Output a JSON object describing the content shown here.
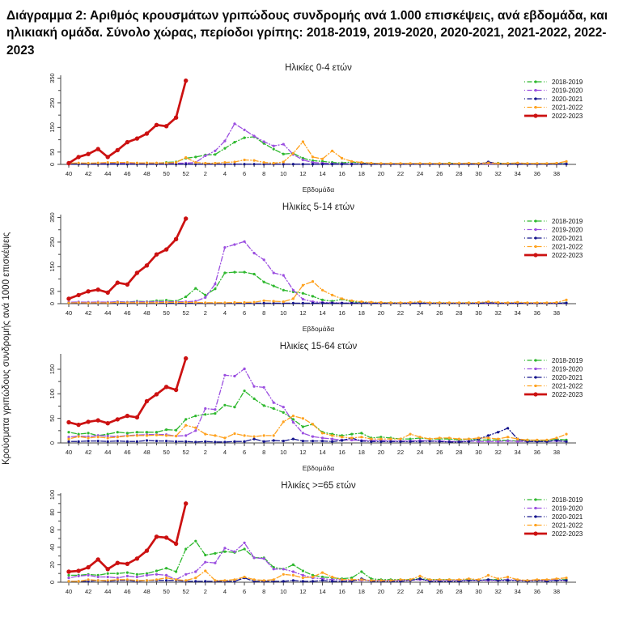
{
  "heading": "Διάγραμμα 2: Αριθμός κρουσμάτων γριπώδους συνδρομής ανά 1.000 επισκέψεις, ανά εβδομάδα, και ηλικιακή ομάδα. Σύνολο χώρας, περίοδοι γρίπης: 2018-2019, 2019-2020, 2020-2021, 2021-2022, 2022-2023",
  "ylabel": "Κρούσματα γριπώδους συνδρομής ανά 1000 επισκέψεις",
  "xlabel": "Εβδομάδα",
  "weeks": [
    40,
    41,
    42,
    43,
    44,
    45,
    46,
    47,
    48,
    49,
    50,
    51,
    52,
    1,
    2,
    3,
    4,
    5,
    6,
    7,
    8,
    9,
    10,
    11,
    12,
    13,
    14,
    15,
    16,
    17,
    18,
    19,
    20,
    21,
    22,
    23,
    24,
    25,
    26,
    27,
    28,
    29,
    30,
    31,
    32,
    33,
    34,
    35,
    36,
    37,
    38,
    39
  ],
  "x_tick_labels": [
    40,
    42,
    44,
    46,
    48,
    50,
    52,
    2,
    4,
    6,
    8,
    10,
    12,
    14,
    16,
    18,
    20,
    22,
    24,
    26,
    28,
    30,
    32,
    34,
    36,
    38
  ],
  "series_meta": [
    {
      "name": "2018-2019",
      "color": "#2eb82e",
      "style": "dashdot"
    },
    {
      "name": "2019-2020",
      "color": "#9b4fe0",
      "style": "dashdot"
    },
    {
      "name": "2020-2021",
      "color": "#14148c",
      "style": "dashdot"
    },
    {
      "name": "2021-2022",
      "color": "#ffa21f",
      "style": "dashdot"
    },
    {
      "name": "2022-2023",
      "color": "#cc1111",
      "style": "solid"
    }
  ],
  "chart_data": [
    {
      "type": "line",
      "key": "ages-0-4",
      "title": "Ηλικίες 0-4 ετών",
      "xlabel": "Εβδομάδα",
      "ylim": [
        0,
        355
      ],
      "yticks_labeled": [
        0,
        50,
        150,
        250,
        350
      ],
      "yticks_minor": [
        100,
        200,
        300
      ],
      "legend_position": "top-right",
      "grid": false,
      "has_xlabel": true,
      "series": [
        {
          "name": "2018-2019",
          "values": [
            3,
            4,
            3,
            5,
            4,
            6,
            5,
            5,
            6,
            5,
            8,
            10,
            25,
            30,
            38,
            40,
            65,
            90,
            108,
            112,
            85,
            62,
            42,
            45,
            25,
            15,
            12,
            8,
            6,
            10,
            5,
            4,
            3,
            3,
            3,
            3,
            3,
            3,
            3,
            5,
            3,
            3,
            4,
            3,
            5,
            4,
            3,
            3,
            3,
            3,
            3,
            4
          ]
        },
        {
          "name": "2019-2020",
          "values": [
            2,
            3,
            2,
            3,
            3,
            4,
            5,
            4,
            5,
            5,
            4,
            5,
            5,
            8,
            35,
            55,
            95,
            165,
            140,
            115,
            92,
            75,
            82,
            40,
            18,
            8,
            5,
            3,
            3,
            2,
            2,
            2,
            2,
            2,
            2,
            2,
            2,
            2,
            2,
            2,
            2,
            2,
            2,
            2,
            2,
            2,
            3,
            2,
            2,
            2,
            2,
            3
          ]
        },
        {
          "name": "2020-2021",
          "values": [
            1,
            1,
            1,
            1,
            1,
            1,
            1,
            1,
            1,
            1,
            1,
            1,
            1,
            1,
            1,
            1,
            1,
            1,
            1,
            1,
            1,
            1,
            1,
            1,
            1,
            1,
            1,
            1,
            1,
            1,
            2,
            1,
            1,
            1,
            1,
            1,
            1,
            1,
            1,
            1,
            1,
            1,
            1,
            10,
            3,
            1,
            1,
            1,
            1,
            1,
            2,
            1
          ]
        },
        {
          "name": "2021-2022",
          "values": [
            5,
            6,
            5,
            6,
            8,
            8,
            8,
            6,
            6,
            6,
            6,
            8,
            28,
            8,
            5,
            5,
            8,
            10,
            18,
            16,
            8,
            5,
            10,
            45,
            92,
            30,
            22,
            55,
            25,
            12,
            8,
            5,
            4,
            4,
            4,
            4,
            4,
            4,
            4,
            4,
            4,
            5,
            4,
            6,
            4,
            4,
            6,
            4,
            4,
            4,
            5,
            12
          ]
        },
        {
          "name": "2022-2023",
          "values": [
            5,
            30,
            42,
            62,
            30,
            58,
            90,
            105,
            125,
            160,
            155,
            190,
            340
          ]
        }
      ]
    },
    {
      "type": "line",
      "key": "ages-5-14",
      "title": "Ηλικίες 5-14 ετών",
      "xlabel": "Εβδομάδα",
      "ylim": [
        0,
        355
      ],
      "yticks_labeled": [
        0,
        50,
        150,
        250,
        350
      ],
      "yticks_minor": [
        100,
        200,
        300
      ],
      "legend_position": "top-right",
      "grid": false,
      "has_xlabel": true,
      "series": [
        {
          "name": "2018-2019",
          "values": [
            5,
            6,
            5,
            6,
            5,
            8,
            6,
            10,
            8,
            12,
            14,
            10,
            28,
            62,
            35,
            60,
            125,
            128,
            128,
            120,
            88,
            72,
            55,
            48,
            42,
            30,
            15,
            10,
            18,
            8,
            6,
            5,
            4,
            4,
            3,
            3,
            4,
            3,
            4,
            3,
            3,
            4,
            3,
            4,
            3,
            3,
            4,
            3,
            3,
            3,
            3,
            4
          ]
        },
        {
          "name": "2019-2020",
          "values": [
            6,
            7,
            6,
            7,
            6,
            8,
            6,
            8,
            7,
            8,
            8,
            8,
            8,
            10,
            25,
            80,
            228,
            240,
            252,
            205,
            178,
            125,
            115,
            55,
            18,
            8,
            5,
            4,
            3,
            3,
            3,
            3,
            2,
            2,
            2,
            2,
            2,
            2,
            2,
            2,
            2,
            2,
            2,
            2,
            2,
            2,
            3,
            2,
            2,
            2,
            2,
            3
          ]
        },
        {
          "name": "2020-2021",
          "values": [
            2,
            2,
            2,
            2,
            2,
            2,
            2,
            2,
            2,
            2,
            2,
            2,
            2,
            2,
            2,
            2,
            2,
            2,
            2,
            2,
            2,
            2,
            2,
            2,
            2,
            2,
            2,
            2,
            2,
            2,
            3,
            2,
            2,
            2,
            2,
            2,
            2,
            2,
            2,
            2,
            2,
            2,
            2,
            4,
            2,
            2,
            2,
            2,
            2,
            2,
            2,
            2
          ]
        },
        {
          "name": "2021-2022",
          "values": [
            3,
            4,
            3,
            4,
            3,
            5,
            4,
            4,
            4,
            4,
            5,
            5,
            5,
            5,
            4,
            4,
            4,
            5,
            5,
            6,
            12,
            10,
            8,
            20,
            75,
            90,
            55,
            35,
            20,
            12,
            8,
            6,
            5,
            4,
            4,
            5,
            8,
            4,
            4,
            4,
            4,
            4,
            5,
            8,
            5,
            4,
            6,
            4,
            4,
            4,
            5,
            15
          ]
        },
        {
          "name": "2022-2023",
          "values": [
            20,
            35,
            50,
            57,
            45,
            85,
            78,
            125,
            155,
            200,
            220,
            262,
            345
          ]
        }
      ]
    },
    {
      "type": "line",
      "key": "ages-15-64",
      "title": "Ηλικίες 15-64 ετών",
      "xlabel": "Εβδομάδα",
      "ylim": [
        0,
        178
      ],
      "yticks_labeled": [
        0,
        50,
        100,
        150
      ],
      "yticks_minor": [
        25,
        75,
        125
      ],
      "legend_position": "top-right",
      "grid": false,
      "has_xlabel": true,
      "series": [
        {
          "name": "2018-2019",
          "values": [
            22,
            18,
            20,
            15,
            18,
            22,
            20,
            22,
            22,
            22,
            27,
            26,
            48,
            55,
            58,
            60,
            77,
            73,
            106,
            90,
            76,
            70,
            62,
            48,
            33,
            38,
            22,
            18,
            15,
            18,
            20,
            10,
            12,
            10,
            8,
            8,
            10,
            8,
            8,
            8,
            6,
            8,
            6,
            6,
            6,
            5,
            4,
            6,
            5,
            5,
            8,
            6
          ]
        },
        {
          "name": "2019-2020",
          "values": [
            12,
            14,
            13,
            15,
            14,
            13,
            15,
            16,
            17,
            17,
            17,
            14,
            15,
            25,
            70,
            68,
            138,
            136,
            151,
            115,
            113,
            82,
            73,
            42,
            20,
            13,
            10,
            8,
            6,
            6,
            5,
            5,
            5,
            4,
            4,
            4,
            5,
            4,
            4,
            3,
            3,
            4,
            3,
            3,
            3,
            4,
            3,
            3,
            3,
            3,
            4,
            3
          ]
        },
        {
          "name": "2020-2021",
          "values": [
            3,
            3,
            4,
            4,
            3,
            4,
            3,
            3,
            5,
            4,
            4,
            3,
            3,
            2,
            3,
            2,
            2,
            3,
            3,
            8,
            3,
            5,
            4,
            8,
            4,
            4,
            4,
            3,
            5,
            10,
            4,
            3,
            3,
            3,
            3,
            3,
            3,
            4,
            3,
            2,
            2,
            3,
            8,
            15,
            22,
            30,
            8,
            3,
            3,
            3,
            5,
            3
          ]
        },
        {
          "name": "2021-2022",
          "values": [
            8,
            13,
            10,
            12,
            10,
            12,
            14,
            15,
            15,
            16,
            15,
            14,
            36,
            31,
            18,
            15,
            10,
            19,
            15,
            13,
            15,
            15,
            43,
            55,
            50,
            38,
            20,
            15,
            12,
            10,
            12,
            8,
            8,
            8,
            8,
            18,
            12,
            8,
            10,
            10,
            8,
            8,
            10,
            10,
            8,
            12,
            8,
            6,
            6,
            6,
            10,
            18
          ]
        },
        {
          "name": "2022-2023",
          "values": [
            42,
            37,
            43,
            46,
            40,
            48,
            55,
            52,
            85,
            99,
            114,
            108,
            172
          ]
        }
      ]
    },
    {
      "type": "line",
      "key": "ages-65-plus",
      "title": "Ηλικίες >=65 ετών",
      "xlabel": "Εβδομάδα",
      "ylim": [
        0,
        100
      ],
      "yticks_labeled": [
        0,
        20,
        40,
        60,
        80,
        100
      ],
      "yticks_minor": [
        10,
        30,
        50,
        70,
        90
      ],
      "legend_position": "top-right",
      "grid": false,
      "has_xlabel": false,
      "series": [
        {
          "name": "2018-2019",
          "values": [
            8,
            8,
            9,
            8,
            10,
            10,
            11,
            9,
            10,
            13,
            16,
            12,
            38,
            47,
            31,
            33,
            35,
            34,
            38,
            28,
            28,
            17,
            15,
            20,
            13,
            8,
            6,
            5,
            4,
            5,
            12,
            4,
            3,
            3,
            3,
            3,
            4,
            3,
            3,
            3,
            2,
            3,
            2,
            3,
            3,
            3,
            2,
            2,
            2,
            2,
            3,
            3
          ]
        },
        {
          "name": "2019-2020",
          "values": [
            5,
            7,
            8,
            6,
            6,
            5,
            7,
            6,
            8,
            9,
            8,
            3,
            9,
            12,
            23,
            22,
            39,
            35,
            45,
            28,
            27,
            15,
            15,
            12,
            8,
            5,
            4,
            3,
            3,
            2,
            2,
            2,
            2,
            2,
            2,
            2,
            3,
            2,
            2,
            2,
            2,
            2,
            2,
            2,
            2,
            3,
            2,
            2,
            2,
            2,
            3,
            2
          ]
        },
        {
          "name": "2020-2021",
          "values": [
            1,
            1,
            1,
            2,
            1,
            2,
            2,
            1,
            2,
            2,
            2,
            2,
            1,
            1,
            1,
            1,
            1,
            1,
            5,
            1,
            1,
            1,
            1,
            2,
            1,
            1,
            2,
            1,
            1,
            1,
            4,
            1,
            1,
            1,
            1,
            2,
            4,
            1,
            1,
            1,
            1,
            2,
            2,
            3,
            2,
            2,
            2,
            1,
            2,
            1,
            2,
            2
          ]
        },
        {
          "name": "2021-2022",
          "values": [
            1,
            1,
            3,
            2,
            2,
            3,
            3,
            2,
            2,
            3,
            5,
            3,
            2,
            5,
            13,
            2,
            2,
            3,
            6,
            3,
            2,
            3,
            9,
            8,
            5,
            6,
            11,
            6,
            3,
            3,
            3,
            2,
            2,
            2,
            3,
            3,
            7,
            3,
            3,
            3,
            3,
            4,
            3,
            8,
            4,
            6,
            3,
            2,
            3,
            3,
            4,
            5
          ]
        },
        {
          "name": "2022-2023",
          "values": [
            12,
            13,
            17,
            26,
            15,
            22,
            21,
            27,
            36,
            52,
            51,
            44,
            90
          ]
        }
      ]
    }
  ]
}
